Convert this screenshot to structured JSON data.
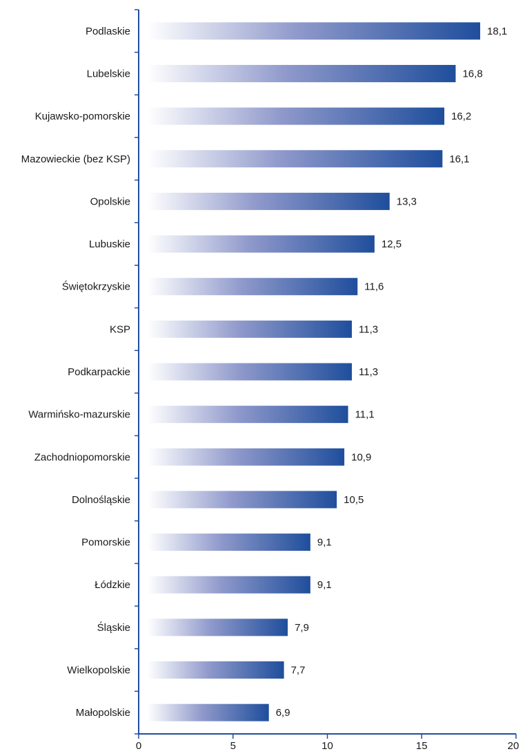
{
  "chart_data": {
    "type": "bar",
    "orientation": "horizontal",
    "title": "",
    "xlabel": "",
    "ylabel": "",
    "categories": [
      "Podlaskie",
      "Lubelskie",
      "Kujawsko-pomorskie",
      "Mazowieckie (bez KSP)",
      "Opolskie",
      "Lubuskie",
      "Świętokrzyskie",
      "KSP",
      "Podkarpackie",
      "Warmińsko-mazurskie",
      "Zachodniopomorskie",
      "Dolnośląskie",
      "Pomorskie",
      "Łódzkie",
      "Śląskie",
      "Wielkopolskie",
      "Małopolskie"
    ],
    "values": [
      18.1,
      16.8,
      16.2,
      16.1,
      13.3,
      12.5,
      11.6,
      11.3,
      11.3,
      11.1,
      10.9,
      10.5,
      9.1,
      9.1,
      7.9,
      7.7,
      6.9
    ],
    "value_labels": [
      "18,1",
      "16,8",
      "16,2",
      "16,1",
      "13,3",
      "12,5",
      "11,6",
      "11,3",
      "11,3",
      "11,1",
      "10,9",
      "10,5",
      "9,1",
      "9,1",
      "7,9",
      "7,7",
      "6,9"
    ],
    "xlim": [
      0,
      20
    ],
    "xticks": [
      0,
      5,
      10,
      15,
      20
    ],
    "xtick_labels": [
      "0",
      "5",
      "10",
      "15",
      "20"
    ],
    "grid": false,
    "legend": "none",
    "colors": {
      "bar_start": "#ffffff",
      "bar_mid": "#8f99cb",
      "bar_end": "#1f4e9c",
      "axis": "#1f4e9c",
      "text": "#1a1a1a"
    }
  }
}
